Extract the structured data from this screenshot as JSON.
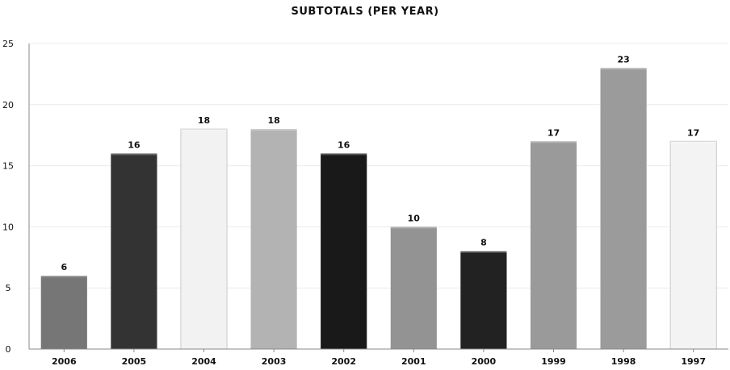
{
  "chart_data": {
    "type": "bar",
    "title": "SUBTOTALS (PER YEAR)",
    "categories": [
      "2006",
      "2005",
      "2004",
      "2003",
      "2002",
      "2001",
      "2000",
      "1999",
      "1998",
      "1997"
    ],
    "values": [
      6,
      16,
      18,
      18,
      16,
      10,
      8,
      17,
      23,
      17
    ],
    "colors": [
      "#767676",
      "#333333",
      "#f2f2f2",
      "#b3b3b3",
      "#191919",
      "#939393",
      "#222222",
      "#9a9a9a",
      "#9b9b9b",
      "#f3f3f3"
    ],
    "ylim": [
      0,
      25
    ],
    "yticks": [
      0,
      5,
      10,
      15,
      20,
      25
    ],
    "grid": true,
    "legend": "none"
  }
}
